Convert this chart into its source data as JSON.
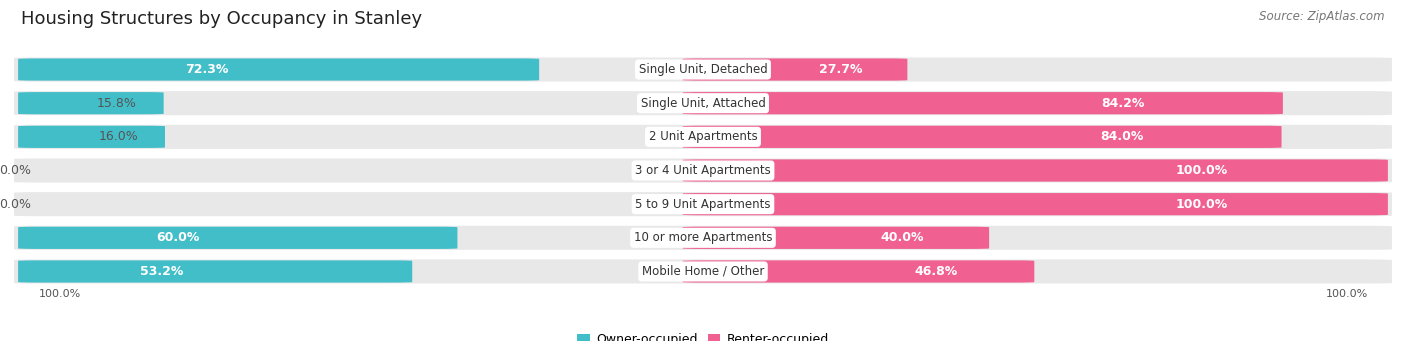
{
  "title": "Housing Structures by Occupancy in Stanley",
  "source": "Source: ZipAtlas.com",
  "categories": [
    "Single Unit, Detached",
    "Single Unit, Attached",
    "2 Unit Apartments",
    "3 or 4 Unit Apartments",
    "5 to 9 Unit Apartments",
    "10 or more Apartments",
    "Mobile Home / Other"
  ],
  "owner_pct": [
    72.3,
    15.8,
    16.0,
    0.0,
    0.0,
    60.0,
    53.2
  ],
  "renter_pct": [
    27.7,
    84.2,
    84.0,
    100.0,
    100.0,
    40.0,
    46.8
  ],
  "owner_color": "#42bec8",
  "renter_color": "#f06090",
  "owner_color_light": "#a0dde6",
  "renter_color_light": "#f8b8cc",
  "bg_color": "#ffffff",
  "row_bg_color": "#e8e8e8",
  "axis_label_left": "100.0%",
  "axis_label_right": "100.0%",
  "title_fontsize": 13,
  "source_fontsize": 8.5,
  "bar_label_fontsize": 9,
  "category_fontsize": 8.5,
  "legend_fontsize": 9
}
